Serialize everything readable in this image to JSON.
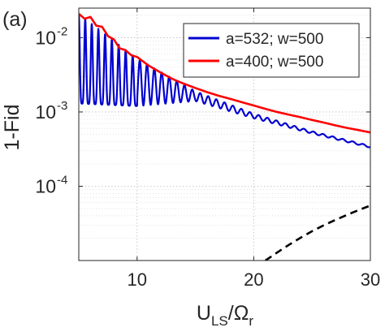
{
  "chart_data": {
    "type": "line",
    "panel_label": "(a)",
    "xlabel": {
      "main": "U",
      "sub": "LS",
      "sep": "/",
      "main2": "Ω",
      "sub2": "r"
    },
    "ylabel": "1-Fid",
    "xlim": [
      5,
      30
    ],
    "ylim": [
      1e-05,
      0.025
    ],
    "yscale": "log",
    "grid": {
      "major": true,
      "minor": true,
      "style": "dotted"
    },
    "x_ticks": [
      {
        "value": 10,
        "label": "10"
      },
      {
        "value": 20,
        "label": "20"
      },
      {
        "value": 30,
        "label": "30"
      }
    ],
    "y_ticks": [
      {
        "value": 0.01,
        "base": "10",
        "exp": "-2"
      },
      {
        "value": 0.001,
        "base": "10",
        "exp": "-3"
      },
      {
        "value": 0.0001,
        "base": "10",
        "exp": "-4"
      }
    ],
    "legend": {
      "position": "top-right"
    },
    "series": [
      {
        "name": "a=532; w=500",
        "color": "#0000d0",
        "style": "solid",
        "x": [
          5.0,
          5.5,
          6.0,
          6.5,
          7.0,
          7.5,
          8.0,
          8.5,
          9.0,
          9.5,
          10,
          11,
          12,
          13,
          14,
          15,
          16,
          17,
          18,
          19,
          20,
          21,
          22,
          23,
          24,
          25,
          26,
          27,
          28,
          29,
          30
        ],
        "y": [
          0.021,
          0.0013,
          0.016,
          0.00125,
          0.0115,
          0.0012,
          0.0085,
          0.0012,
          0.0066,
          0.0012,
          0.0052,
          0.0036,
          0.0028,
          0.0023,
          0.0019,
          0.00165,
          0.00145,
          0.00125,
          0.0011,
          0.00098,
          0.00088,
          0.0008,
          0.00072,
          0.00064,
          0.00058,
          0.00053,
          0.00048,
          0.00044,
          0.0004,
          0.00037,
          0.00034
        ],
        "oscillation_band": [
          {
            "x": 5.0,
            "upper": 0.021,
            "lower": 0.0013
          },
          {
            "x": 10,
            "upper": 0.0052,
            "lower": 0.0012
          },
          {
            "x": 15,
            "upper": 0.0019,
            "lower": 0.0014
          },
          {
            "x": 20,
            "upper": 0.00095,
            "lower": 0.00082
          },
          {
            "x": 25,
            "upper": 0.00055,
            "lower": 0.00051
          },
          {
            "x": 30,
            "upper": 0.00035,
            "lower": 0.00033
          }
        ]
      },
      {
        "name": "a=400; w=500",
        "color": "#ff0000",
        "style": "solid",
        "x": [
          5.0,
          5.5,
          6.0,
          6.5,
          7.0,
          7.5,
          8.0,
          8.5,
          9.0,
          9.5,
          10,
          11,
          12,
          13,
          14,
          15,
          16,
          17,
          18,
          19,
          20,
          21,
          22,
          23,
          24,
          25,
          26,
          27,
          28,
          29,
          30
        ],
        "y": [
          0.021,
          0.018,
          0.019,
          0.0145,
          0.014,
          0.0105,
          0.0095,
          0.0072,
          0.0068,
          0.0058,
          0.0055,
          0.0042,
          0.0034,
          0.0028,
          0.0024,
          0.0021,
          0.00185,
          0.00165,
          0.0015,
          0.00135,
          0.00122,
          0.0011,
          0.001,
          0.00092,
          0.00085,
          0.00078,
          0.00072,
          0.00066,
          0.00061,
          0.00057,
          0.00053
        ]
      },
      {
        "color": "#000000",
        "style": "dashed",
        "x": [
          21.0,
          22,
          23,
          24,
          25,
          26,
          27,
          28,
          29,
          30
        ],
        "y": [
          1e-05,
          1.28e-05,
          1.62e-05,
          2.02e-05,
          2.48e-05,
          2.98e-05,
          3.52e-05,
          4.12e-05,
          4.78e-05,
          5.5e-05
        ]
      }
    ]
  }
}
